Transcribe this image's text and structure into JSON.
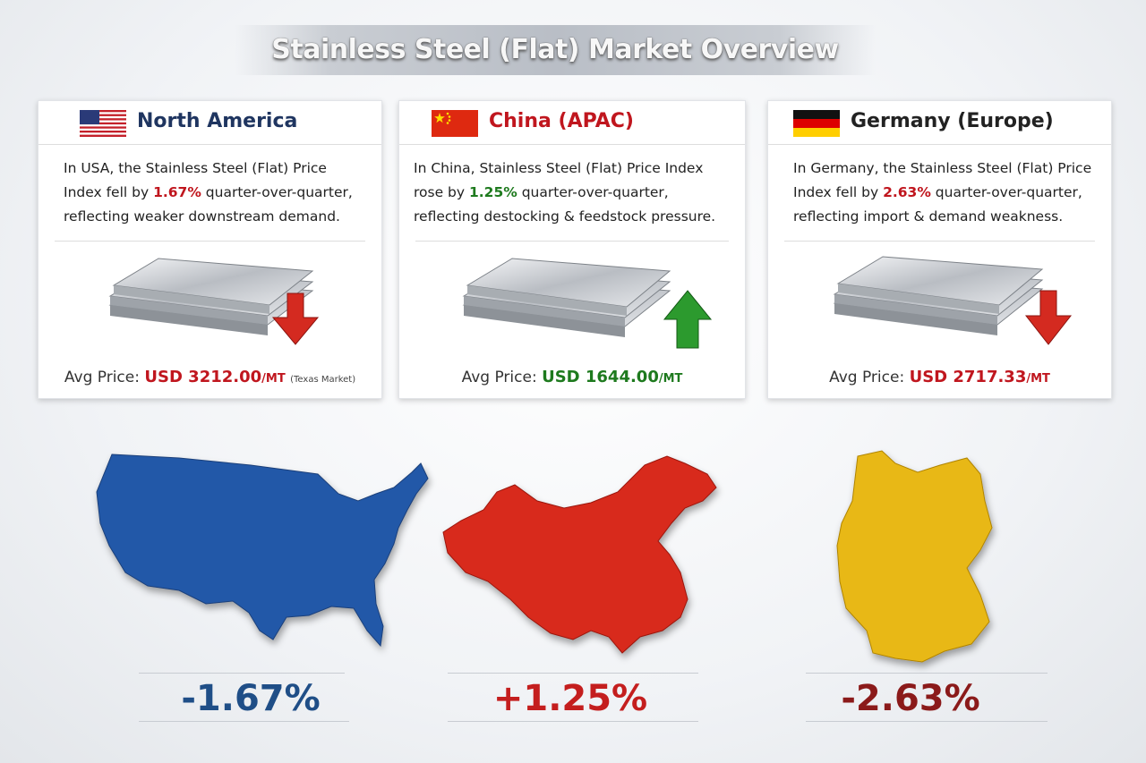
{
  "header": {
    "title": "Stainless Steel (Flat) Market Overview"
  },
  "cards": [
    {
      "region": "North America",
      "description": [
        "In USA, the Stainless Steel (Flat) Price Index fell by ",
        "1.67%",
        " quarter-over-quarter, reflecting weaker downstream demand."
      ],
      "price_label": "Avg Price:",
      "price": "USD 3212.00",
      "unit": "/MT",
      "note": "(Texas Market)"
    },
    {
      "region": "China (APAC)",
      "description": [
        "In China, Stainless Steel (Flat) Price Index rose by ",
        "1.25%",
        " quarter-over-quarter, reflecting destocking & feedstock pressure."
      ],
      "price_label": "Avg Price:",
      "price": "USD 1644.00",
      "unit": "/MT"
    },
    {
      "region": "Germany (Europe)",
      "description": [
        "In Germany, the Stainless Steel (Flat) Price Index fell by ",
        "2.63%",
        " quarter-over-quarter, reflecting import & demand weakness."
      ],
      "price_label": "Avg Price:",
      "price": "USD 2717.33",
      "unit": "/MT"
    }
  ],
  "changes": [
    "-1.67%",
    "+1.25%",
    "-2.63%"
  ]
}
